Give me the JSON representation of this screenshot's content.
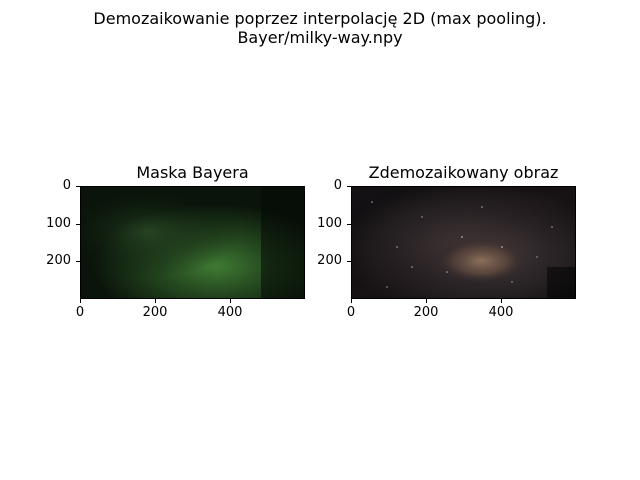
{
  "figure": {
    "suptitle_line1": "Demozaikowanie poprzez interpolację 2D (max pooling).",
    "suptitle_line2": "Bayer/milky-way.npy"
  },
  "chart_data": [
    {
      "type": "image",
      "title": "Maska Bayera",
      "xticks": [
        "0",
        "200",
        "400"
      ],
      "yticks": [
        "0",
        "100",
        "200"
      ],
      "xlim": [
        0,
        600
      ],
      "ylim": [
        300,
        0
      ],
      "dominant_color": "#1d3a1a"
    },
    {
      "type": "image",
      "title": "Zdemozaikowany obraz",
      "xticks": [
        "0",
        "200",
        "400"
      ],
      "yticks": [
        "0",
        "100",
        "200"
      ],
      "xlim": [
        0,
        600
      ],
      "ylim": [
        300,
        0
      ],
      "dominant_color": "#3a3232"
    }
  ]
}
